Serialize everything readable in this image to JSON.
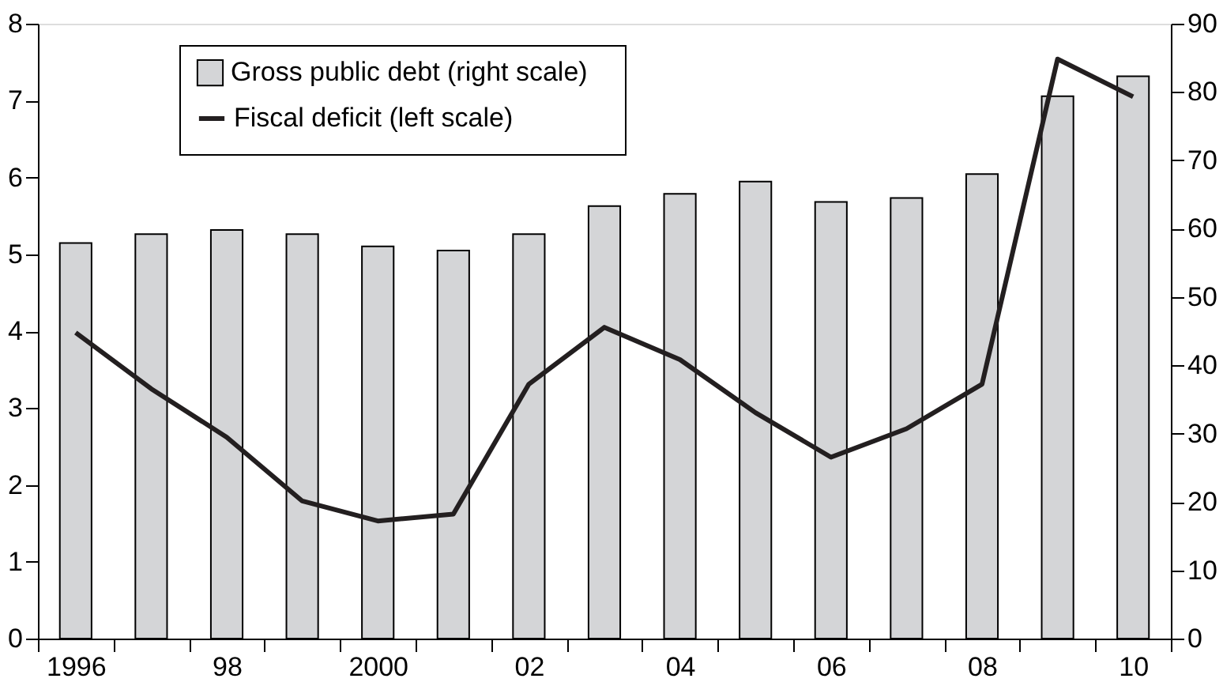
{
  "chart_data": {
    "type": "bar",
    "categories": [
      "1996",
      null,
      "98",
      null,
      "2000",
      null,
      "02",
      null,
      "04",
      null,
      "06",
      null,
      "08",
      null,
      "10"
    ],
    "series": [
      {
        "name": "Gross public debt (right scale)",
        "axis": "y2",
        "color": "#d4d5d7",
        "values": [
          57.9,
          59.2,
          59.8,
          59.2,
          57.4,
          56.8,
          59.2,
          63.3,
          65.1,
          66.9,
          63.9,
          64.5,
          68.0,
          79.4,
          82.3
        ]
      },
      {
        "name": "Fiscal deficit (left scale)",
        "type": "line",
        "axis": "y",
        "color": "#231f20",
        "values": [
          3.98,
          3.25,
          2.62,
          1.79,
          1.53,
          1.62,
          3.31,
          4.05,
          3.63,
          2.94,
          2.36,
          2.73,
          3.31,
          7.54,
          7.05
        ]
      }
    ],
    "ylim": [
      0,
      8
    ],
    "yticks": [
      0,
      1,
      2,
      3,
      4,
      5,
      6,
      7,
      8
    ],
    "y2lim": [
      0,
      90
    ],
    "y2ticks": [
      0,
      10,
      20,
      30,
      40,
      50,
      60,
      70,
      80,
      90
    ],
    "legend": "top",
    "grid": false
  }
}
